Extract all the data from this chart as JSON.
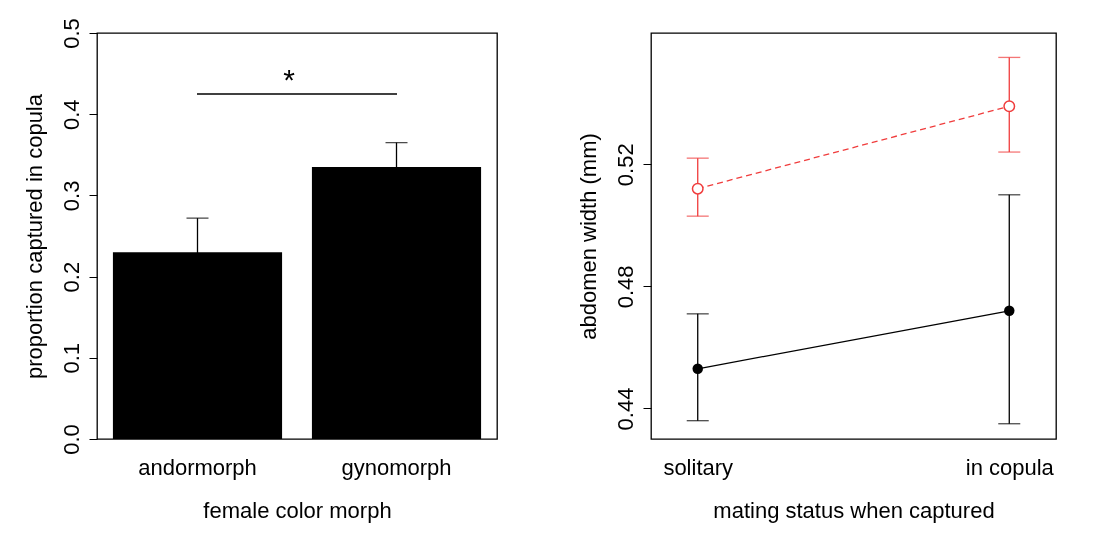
{
  "chart_data": [
    {
      "type": "bar",
      "xlabel": "female color morph",
      "ylabel": "proportion captured in copula",
      "categories": [
        "andormorph",
        "gynomorph"
      ],
      "values": [
        0.23,
        0.335
      ],
      "errors": [
        0.042,
        0.03
      ],
      "color": "#000000",
      "ylim": [
        0,
        0.5
      ],
      "yticks": [
        {
          "value": 0,
          "label": "0.0"
        },
        0.1,
        0.2,
        0.3,
        0.4,
        0.5
      ],
      "grid": false,
      "annotations": [
        "*"
      ]
    },
    {
      "type": "line",
      "xlabel": "mating status when captured",
      "ylabel": "abdomen width (mm)",
      "categories": [
        "solitary",
        "in copula"
      ],
      "series": [
        {
          "color": "#000000",
          "values": [
            0.453,
            0.472
          ],
          "errors": [
            [
              0.436,
              0.471
            ],
            [
              0.435,
              0.51
            ]
          ],
          "line_style": "solid",
          "marker": "circle"
        },
        {
          "color": "#f03c3c",
          "values": [
            0.512,
            0.539
          ],
          "errors": [
            [
              0.503,
              0.522
            ],
            [
              0.524,
              0.555
            ]
          ],
          "line_style": "dashed",
          "marker": "circle"
        }
      ],
      "ylim": [
        0.43,
        0.563
      ],
      "yticks": [
        0.44,
        0.48,
        0.52
      ],
      "grid": false
    }
  ]
}
